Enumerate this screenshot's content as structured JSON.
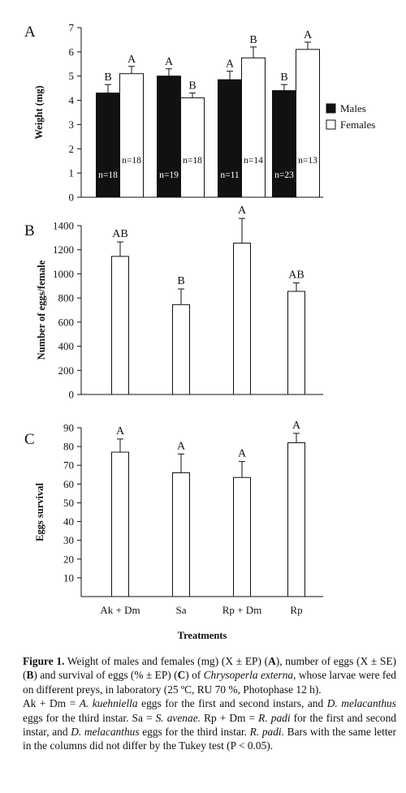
{
  "chart_data": [
    {
      "type": "bar",
      "panel_label": "A",
      "ylabel": "Weight (mg)",
      "ylim": [
        0,
        7
      ],
      "yticks": [
        0,
        1,
        2,
        3,
        4,
        5,
        6,
        7
      ],
      "legend": {
        "placement": "right",
        "entries": [
          "Males",
          "Females"
        ]
      },
      "series": [
        {
          "name": "Males",
          "color": "#111111",
          "values": [
            4.3,
            5.0,
            4.85,
            4.4
          ],
          "errors": [
            0.35,
            0.3,
            0.35,
            0.25
          ],
          "letters": [
            "B",
            "A",
            "A",
            "B"
          ],
          "n_labels": [
            "n=18",
            "n=19",
            "n=11",
            "n=23"
          ]
        },
        {
          "name": "Females",
          "color": "#ffffff",
          "values": [
            5.1,
            4.1,
            5.75,
            6.1
          ],
          "errors": [
            0.3,
            0.2,
            0.45,
            0.3
          ],
          "letters": [
            "A",
            "B",
            "B",
            "A"
          ],
          "n_labels": [
            "n=18",
            "n=18",
            "n=14",
            "n=13"
          ]
        }
      ]
    },
    {
      "type": "bar",
      "panel_label": "B",
      "ylabel": "Number of eggs/female",
      "ylim": [
        0,
        1400
      ],
      "yticks": [
        0,
        200,
        400,
        600,
        800,
        1000,
        1200,
        1400
      ],
      "values": [
        1145,
        745,
        1255,
        855
      ],
      "errors": [
        120,
        130,
        205,
        70
      ],
      "letters": [
        "AB",
        "B",
        "A",
        "AB"
      ]
    },
    {
      "type": "bar",
      "panel_label": "C",
      "ylabel": "Eggs survival",
      "xlabel": "Treatments",
      "ylim": [
        0,
        90
      ],
      "yticks": [
        10,
        20,
        30,
        40,
        50,
        60,
        70,
        80,
        90
      ],
      "categories": [
        "Ak + Dm",
        "Sa",
        "Rp + Dm",
        "Rp"
      ],
      "values": [
        77,
        66,
        63.5,
        82
      ],
      "errors": [
        7,
        10,
        8.5,
        5
      ],
      "letters": [
        "A",
        "A",
        "A",
        "A"
      ]
    }
  ],
  "caption": {
    "label": "Figure 1.",
    "part1": " Weight of males and females (mg) (X ± EP) (",
    "bA": "A",
    "part2": "), number of eggs (X ± SE) (",
    "bB": "B",
    "part3": ") and survival of eggs (% ± EP) (",
    "bC": "C",
    "part4": ") of ",
    "species": "Chrysoperla externa",
    "part5": ", whose larvae were fed on different preys, in laboratory (25 ºC, RU 70 %, Photophase 12 h).",
    "line2": [
      {
        "t": "Ak + Dm = ",
        "i": false
      },
      {
        "t": "A. kuehniella",
        "i": true
      },
      {
        "t": " eggs for the first and second instars, and ",
        "i": false
      },
      {
        "t": "D. melacanthus",
        "i": true
      },
      {
        "t": " eggs for the third instar. Sa = ",
        "i": false
      },
      {
        "t": "S. avenae.",
        "i": true
      },
      {
        "t": " Rp + Dm = ",
        "i": false
      },
      {
        "t": "R. padi",
        "i": true
      },
      {
        "t": " for the first and second instar, and  ",
        "i": false
      },
      {
        "t": "D. melacanthus",
        "i": true
      },
      {
        "t": " eggs for the third instar. ",
        "i": false
      },
      {
        "t": "R. padi.",
        "i": true
      },
      {
        "t": " Bars with the same letter in the columns did not differ by the Tukey test (P < 0.05).",
        "i": false
      }
    ]
  }
}
